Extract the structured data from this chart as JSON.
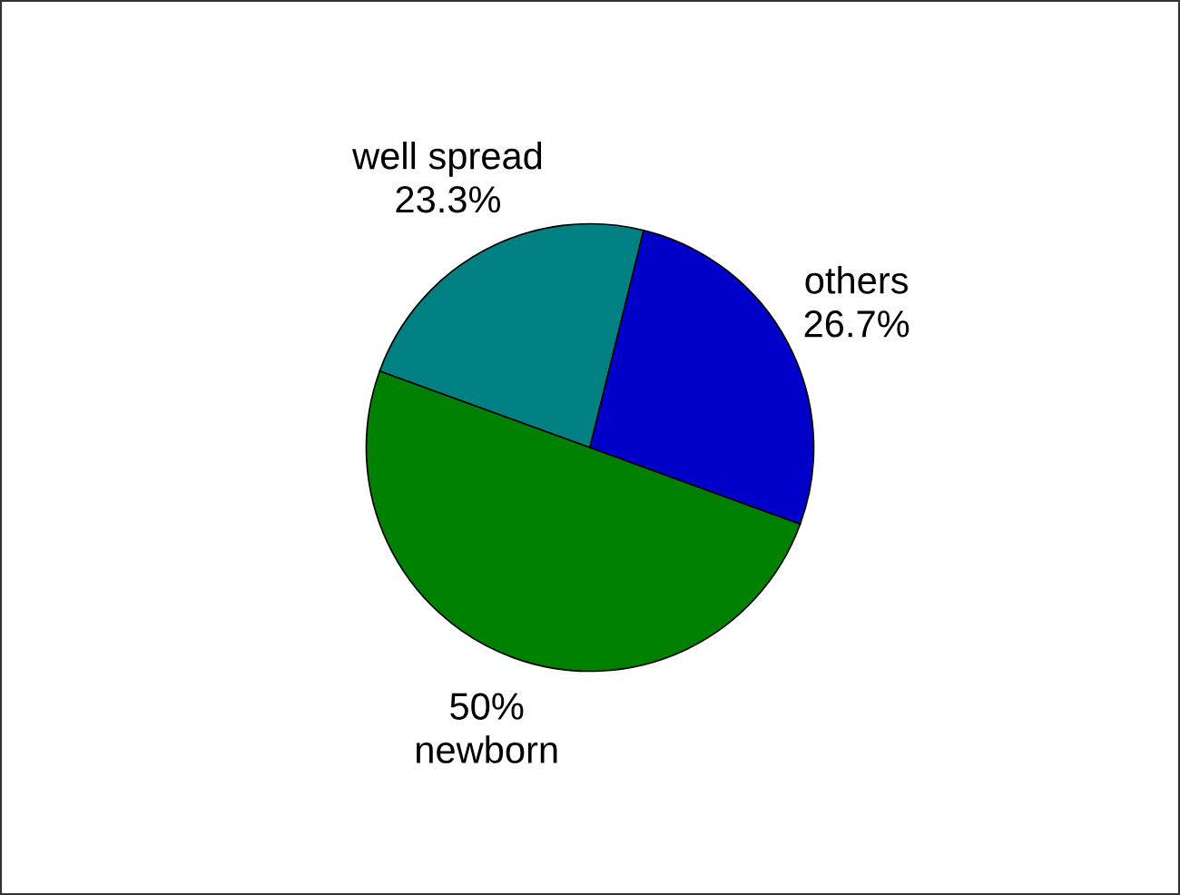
{
  "chart_data": {
    "type": "pie",
    "categories": [
      "newborn",
      "well spread",
      "others"
    ],
    "values": [
      50,
      23.3,
      26.7
    ],
    "value_labels": [
      "50%",
      "23.3%",
      "26.7%"
    ],
    "colors": [
      "#008000",
      "#008080",
      "#0000c8"
    ]
  }
}
